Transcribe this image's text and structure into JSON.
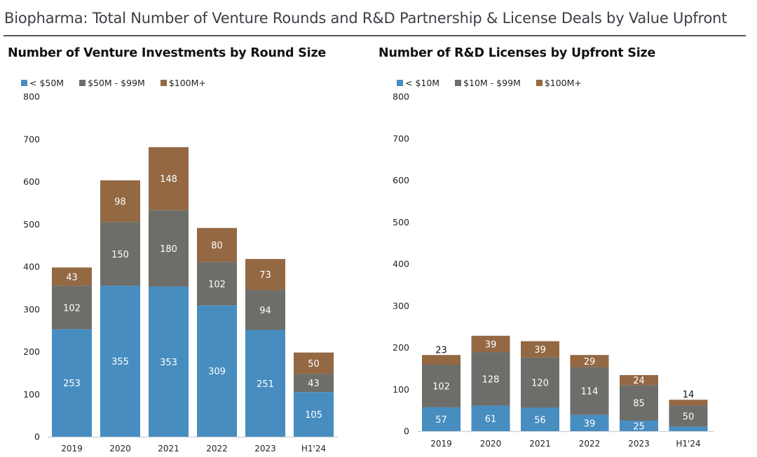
{
  "header": {
    "title": "Biopharma: Total Number of Venture Rounds and R&D Partnership & License Deals by Value Upfront"
  },
  "colors": {
    "blue": "#478dc0",
    "gray": "#6d6d69",
    "brown": "#936843",
    "label_light": "#ffffff",
    "label_dark": "#111111",
    "axis_text": "#222222",
    "axis_line": "#d0d4d8"
  },
  "chart_data": [
    {
      "type": "bar",
      "stacked": true,
      "title": "Number of Venture Investments by Round Size",
      "xlabel": "",
      "ylabel": "",
      "ylim": [
        0,
        800
      ],
      "yticks": [
        0,
        100,
        200,
        300,
        400,
        500,
        600,
        700,
        800
      ],
      "grid": false,
      "legend_position": "top-left",
      "categories": [
        "2019",
        "2020",
        "2021",
        "2022",
        "2023",
        "H1'24"
      ],
      "series": [
        {
          "name": "< $50M",
          "color_key": "blue",
          "values": [
            253,
            355,
            353,
            309,
            251,
            105
          ]
        },
        {
          "name": "$50M - $99M",
          "color_key": "gray",
          "values": [
            102,
            150,
            180,
            102,
            94,
            43
          ]
        },
        {
          "name": "$100M+",
          "color_key": "brown",
          "values": [
            43,
            98,
            148,
            80,
            73,
            50
          ]
        }
      ]
    },
    {
      "type": "bar",
      "stacked": true,
      "title": "Number of R&D Licenses by Upfront Size",
      "xlabel": "",
      "ylabel": "",
      "ylim": [
        0,
        800
      ],
      "yticks": [
        0,
        100,
        200,
        300,
        400,
        500,
        600,
        700,
        800
      ],
      "grid": false,
      "legend_position": "top-left",
      "categories": [
        "2019",
        "2020",
        "2021",
        "2022",
        "2023",
        "H1'24"
      ],
      "series": [
        {
          "name": "< $10M",
          "color_key": "blue",
          "values": [
            57,
            61,
            56,
            39,
            25,
            11
          ]
        },
        {
          "name": "$10M - $99M",
          "color_key": "gray",
          "values": [
            102,
            128,
            120,
            114,
            85,
            50
          ]
        },
        {
          "name": "$100M+",
          "color_key": "brown",
          "values": [
            23,
            39,
            39,
            29,
            24,
            14
          ]
        }
      ]
    }
  ]
}
